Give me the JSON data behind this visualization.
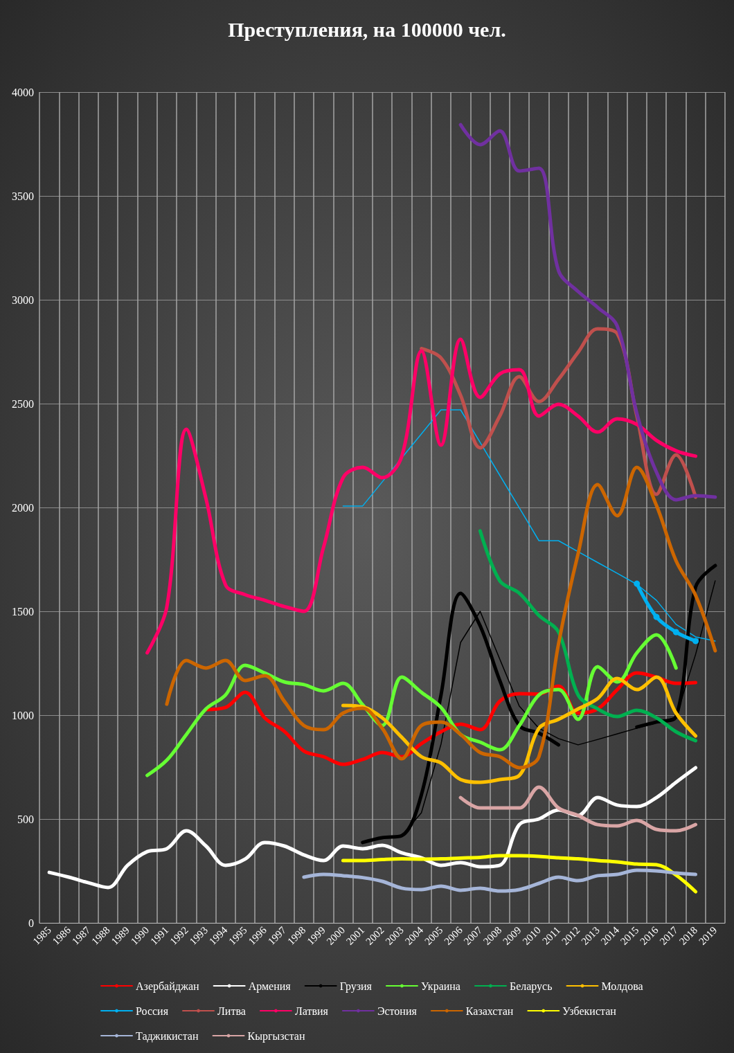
{
  "chart_data": {
    "type": "line",
    "title": "Преступления, на 100000 чел.",
    "categories": [
      "1985",
      "1986",
      "1987",
      "1988",
      "1989",
      "1990",
      "1991",
      "1992",
      "1993",
      "1994",
      "1995",
      "1996",
      "1997",
      "1998",
      "1999",
      "2000",
      "2001",
      "2002",
      "2003",
      "2004",
      "2005",
      "2006",
      "2007",
      "2008",
      "2009",
      "2010",
      "2011",
      "2012",
      "2013",
      "2014",
      "2015",
      "2016",
      "2017",
      "2018",
      "2019"
    ],
    "ylim": [
      0,
      4000
    ],
    "yticks": [
      0,
      500,
      1000,
      1500,
      2000,
      2500,
      3000,
      3500,
      4000
    ],
    "grid": true,
    "legend": "bottom",
    "line_style": "solid",
    "series": [
      {
        "name": "Азербайджан",
        "color": "#ff0000",
        "values": [
          null,
          null,
          null,
          null,
          null,
          null,
          null,
          null,
          1027,
          1037,
          1110,
          987,
          922,
          827,
          800,
          763,
          787,
          820,
          800,
          863,
          920,
          957,
          930,
          1067,
          1103,
          1102,
          1140,
          1010,
          1030,
          1123,
          1203,
          1183,
          1153,
          1157,
          null
        ]
      },
      {
        "name": "Армения",
        "color": "#ffffff",
        "values": [
          243,
          220,
          193,
          170,
          277,
          343,
          357,
          443,
          370,
          277,
          307,
          387,
          370,
          327,
          300,
          370,
          357,
          373,
          337,
          313,
          277,
          290,
          270,
          277,
          473,
          500,
          543,
          517,
          603,
          567,
          560,
          603,
          677,
          747,
          null
        ]
      },
      {
        "name": "Грузия",
        "color": "#000000",
        "values": [
          null,
          null,
          null,
          null,
          null,
          null,
          null,
          null,
          null,
          null,
          null,
          null,
          null,
          null,
          null,
          null,
          387,
          410,
          420,
          617,
          1097,
          1587,
          1430,
          1167,
          950,
          913,
          857,
          null,
          null,
          null,
          943,
          967,
          993,
          1617,
          1720
        ]
      },
      {
        "color": "#000000",
        "values": [
          null,
          null,
          null,
          null,
          null,
          null,
          null,
          null,
          null,
          null,
          null,
          null,
          null,
          null,
          null,
          null,
          null,
          null,
          420,
          530,
          860,
          1350,
          1500,
          1270,
          1043,
          937,
          887,
          857,
          883,
          910,
          937,
          963,
          990,
          1293,
          1647
        ]
      },
      {
        "name": "Украина",
        "color": "#66ff33",
        "values": [
          null,
          null,
          null,
          null,
          null,
          710,
          783,
          907,
          1030,
          1097,
          1240,
          1203,
          1160,
          1147,
          1117,
          1153,
          1050,
          950,
          1183,
          1110,
          1037,
          907,
          870,
          833,
          950,
          1097,
          1123,
          980,
          1233,
          1160,
          1300,
          1387,
          1227,
          null,
          null
        ]
      },
      {
        "name": "Беларусь",
        "color": "#00b050",
        "values": [
          null,
          null,
          null,
          null,
          null,
          null,
          null,
          null,
          null,
          null,
          null,
          null,
          null,
          null,
          null,
          null,
          null,
          null,
          null,
          null,
          null,
          null,
          1887,
          1647,
          1587,
          1480,
          1400,
          1097,
          1030,
          993,
          1023,
          987,
          920,
          877,
          null
        ]
      },
      {
        "name": "Молдова",
        "color": "#ffc000",
        "values": [
          null,
          null,
          null,
          null,
          null,
          null,
          null,
          null,
          null,
          null,
          null,
          null,
          null,
          null,
          null,
          1047,
          1040,
          987,
          893,
          800,
          770,
          690,
          677,
          690,
          710,
          937,
          980,
          1030,
          1080,
          1177,
          1123,
          1183,
          1010,
          900,
          null
        ]
      },
      {
        "name": "Россия",
        "color": "#00b0f0",
        "marker": "circle",
        "values": [
          null,
          null,
          null,
          null,
          null,
          null,
          null,
          null,
          null,
          null,
          null,
          null,
          null,
          null,
          null,
          null,
          null,
          null,
          null,
          null,
          null,
          null,
          null,
          null,
          null,
          null,
          null,
          null,
          null,
          null,
          1633,
          1473,
          1400,
          1357,
          null
        ]
      },
      {
        "color": "#00b0f0",
        "values": [
          null,
          null,
          null,
          null,
          null,
          null,
          null,
          null,
          null,
          null,
          null,
          null,
          null,
          null,
          null,
          2007,
          2007,
          2123,
          2239,
          2354,
          2470,
          2470,
          2313,
          2155,
          1998,
          1840,
          1840,
          1787,
          1735,
          1683,
          1630,
          1553,
          1437,
          1377,
          1357
        ]
      },
      {
        "name": "Литва",
        "color": "#c0504d",
        "values": [
          null,
          null,
          null,
          null,
          null,
          null,
          null,
          null,
          null,
          null,
          null,
          null,
          null,
          null,
          null,
          null,
          null,
          null,
          null,
          2765,
          2720,
          2540,
          2287,
          2440,
          2630,
          2510,
          2617,
          2747,
          2860,
          2837,
          2440,
          2063,
          2253,
          2050,
          null
        ]
      },
      {
        "name": "Латвия",
        "color": "#ff0066",
        "values": [
          null,
          null,
          null,
          null,
          null,
          1300,
          1520,
          2377,
          2043,
          1627,
          1580,
          1553,
          1523,
          1500,
          1807,
          2143,
          2193,
          2143,
          2247,
          2753,
          2300,
          2810,
          2530,
          2643,
          2663,
          2440,
          2497,
          2440,
          2363,
          2427,
          2400,
          2323,
          2273,
          2247,
          null
        ]
      },
      {
        "name": "Эстония",
        "color": "#7030a0",
        "values": [
          null,
          null,
          null,
          null,
          null,
          null,
          null,
          null,
          null,
          null,
          null,
          null,
          null,
          null,
          null,
          null,
          null,
          null,
          null,
          null,
          null,
          3843,
          3747,
          3813,
          3620,
          3633,
          3140,
          3040,
          2963,
          2873,
          2453,
          2170,
          2037,
          2057,
          2050
        ]
      },
      {
        "name": "Казахстан",
        "color": "#cc6600",
        "values": [
          null,
          null,
          null,
          null,
          null,
          null,
          1053,
          1263,
          1227,
          1263,
          1167,
          1190,
          1067,
          950,
          930,
          1010,
          1033,
          937,
          790,
          950,
          967,
          907,
          820,
          800,
          747,
          800,
          1343,
          1777,
          2110,
          1960,
          2193,
          2010,
          1743,
          1577,
          1310
        ]
      },
      {
        "name": "Узбекистан",
        "color": "#ffff00",
        "values": [
          null,
          null,
          null,
          null,
          null,
          null,
          null,
          null,
          null,
          null,
          null,
          null,
          null,
          null,
          null,
          300,
          300,
          305,
          308,
          307,
          308,
          312,
          315,
          323,
          323,
          320,
          313,
          308,
          300,
          293,
          283,
          280,
          230,
          150,
          null
        ]
      },
      {
        "name": "Таджикистан",
        "color": "#a5b5d8",
        "values": [
          null,
          null,
          null,
          null,
          null,
          null,
          null,
          null,
          null,
          null,
          null,
          null,
          null,
          220,
          233,
          227,
          218,
          200,
          167,
          160,
          177,
          157,
          167,
          153,
          160,
          190,
          220,
          203,
          227,
          233,
          253,
          250,
          240,
          233,
          null
        ]
      },
      {
        "name": "Кыргызстан",
        "color": "#d9a5a5",
        "values": [
          null,
          null,
          null,
          null,
          null,
          null,
          null,
          null,
          null,
          null,
          null,
          null,
          null,
          null,
          null,
          null,
          null,
          null,
          null,
          null,
          null,
          603,
          553,
          553,
          553,
          653,
          553,
          517,
          473,
          467,
          493,
          450,
          443,
          473,
          null
        ]
      }
    ]
  }
}
